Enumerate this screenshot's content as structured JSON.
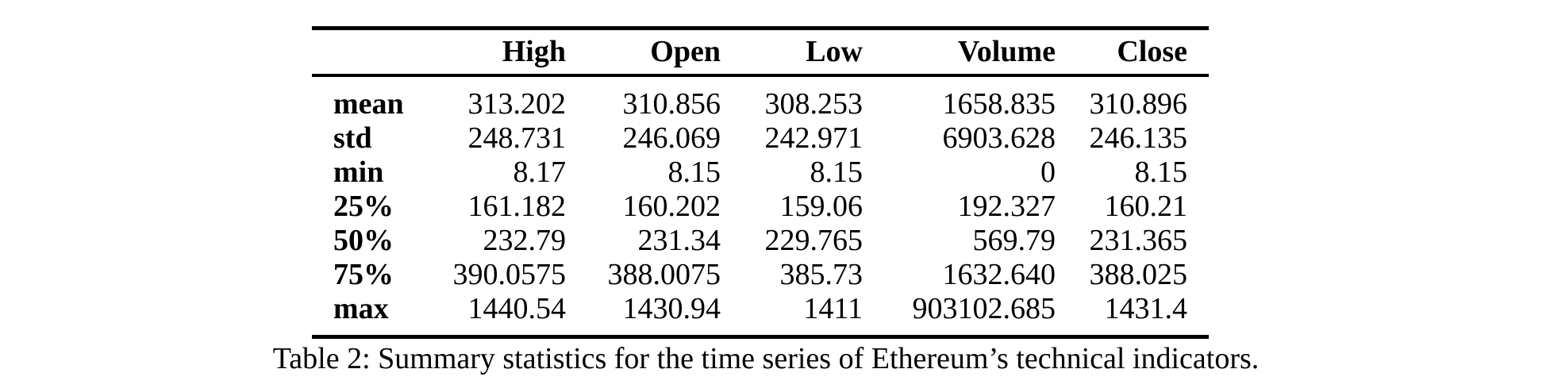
{
  "table": {
    "columns": [
      {
        "key": "high",
        "label": "High"
      },
      {
        "key": "open",
        "label": "Open"
      },
      {
        "key": "low",
        "label": "Low"
      },
      {
        "key": "volume",
        "label": "Volume"
      },
      {
        "key": "close",
        "label": "Close"
      }
    ],
    "rows": [
      {
        "label": "mean",
        "values": [
          "313.202",
          "310.856",
          "308.253",
          "1658.835",
          "310.896"
        ]
      },
      {
        "label": "std",
        "values": [
          "248.731",
          "246.069",
          "242.971",
          "6903.628",
          "246.135"
        ]
      },
      {
        "label": "min",
        "values": [
          "8.17",
          "8.15",
          "8.15",
          "0",
          "8.15"
        ]
      },
      {
        "label": "25%",
        "values": [
          "161.182",
          "160.202",
          "159.06",
          "192.327",
          "160.21"
        ]
      },
      {
        "label": "50%",
        "values": [
          "232.79",
          "231.34",
          "229.765",
          "569.79",
          "231.365"
        ]
      },
      {
        "label": "75%",
        "values": [
          "390.0575",
          "388.0075",
          "385.73",
          "1632.640",
          "388.025"
        ]
      },
      {
        "label": "max",
        "values": [
          "1440.54",
          "1430.94",
          "1411",
          "903102.685",
          "1431.4"
        ]
      }
    ]
  },
  "caption": "Table 2: Summary statistics for the time series of Ethereum’s technical indicators.",
  "colors": {
    "text": "#000000",
    "background": "#ffffff",
    "rule": "#000000"
  },
  "chart_data": {
    "type": "table",
    "title": "Table 2: Summary statistics for the time series of Ethereum’s technical indicators.",
    "columns": [
      "",
      "High",
      "Open",
      "Low",
      "Volume",
      "Close"
    ],
    "rows": [
      [
        "mean",
        "313.202",
        "310.856",
        "308.253",
        "1658.835",
        "310.896"
      ],
      [
        "std",
        "248.731",
        "246.069",
        "242.971",
        "6903.628",
        "246.135"
      ],
      [
        "min",
        "8.17",
        "8.15",
        "8.15",
        "0",
        "8.15"
      ],
      [
        "25%",
        "161.182",
        "160.202",
        "159.06",
        "192.327",
        "160.21"
      ],
      [
        "50%",
        "232.79",
        "231.34",
        "229.765",
        "569.79",
        "231.365"
      ],
      [
        "75%",
        "390.0575",
        "388.0075",
        "385.73",
        "1632.640",
        "388.025"
      ],
      [
        "max",
        "1440.54",
        "1430.94",
        "1411",
        "903102.685",
        "1431.4"
      ]
    ]
  }
}
